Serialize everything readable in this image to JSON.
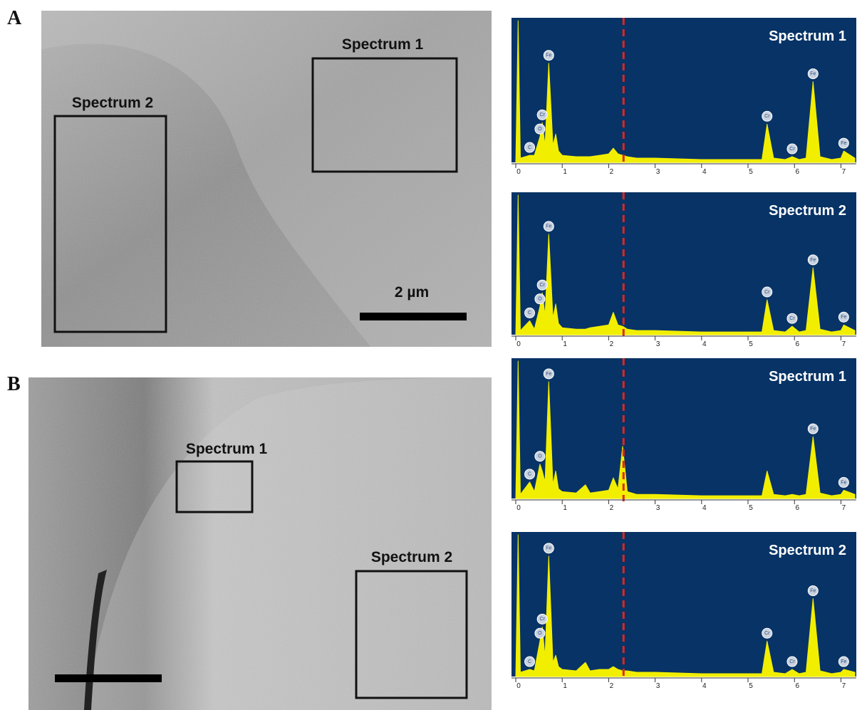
{
  "figure": {
    "panels": [
      {
        "label": "A",
        "regions": [
          "Spectrum 1",
          "Spectrum 2"
        ],
        "scale_bar": "2 µm"
      },
      {
        "label": "B",
        "regions": [
          "Spectrum 1",
          "Spectrum 2"
        ]
      }
    ]
  },
  "chart_data": [
    {
      "type": "area",
      "title": "Spectrum 1",
      "color": "#f2ee00",
      "xlim": [
        0,
        7.3
      ],
      "xticks": [
        0,
        1,
        2,
        3,
        4,
        5,
        6,
        7
      ],
      "reference_line": 2.32,
      "x": [
        0,
        0.05,
        0.1,
        0.3,
        0.4,
        0.52,
        0.57,
        0.63,
        0.71,
        0.8,
        0.86,
        0.92,
        1.0,
        1.3,
        1.5,
        1.6,
        1.8,
        2.0,
        2.1,
        2.2,
        2.3,
        2.4,
        2.6,
        3.0,
        4.0,
        5.0,
        5.3,
        5.41,
        5.55,
        5.8,
        5.95,
        6.1,
        6.25,
        6.4,
        6.55,
        6.8,
        7.0,
        7.06,
        7.3
      ],
      "values": [
        0,
        100,
        3,
        5,
        5,
        18,
        28,
        12,
        70,
        12,
        20,
        8,
        5,
        4,
        4,
        4,
        5,
        6,
        10,
        6,
        5,
        4,
        3,
        3,
        2,
        2,
        2,
        27,
        3,
        2,
        4,
        2,
        3,
        57,
        4,
        2,
        3,
        8,
        3
      ],
      "peaks": [
        {
          "text": "C",
          "x": 0.3
        },
        {
          "text": "O",
          "x": 0.52
        },
        {
          "text": "Cr",
          "x": 0.57
        },
        {
          "text": "Fe",
          "x": 0.71
        },
        {
          "text": "Cr",
          "x": 5.41
        },
        {
          "text": "Cr",
          "x": 5.95
        },
        {
          "text": "Fe",
          "x": 6.4
        },
        {
          "text": "Fe",
          "x": 7.06
        }
      ]
    },
    {
      "type": "area",
      "title": "Spectrum 2",
      "color": "#f2ee00",
      "xlim": [
        0,
        7.3
      ],
      "xticks": [
        0,
        1,
        2,
        3,
        4,
        5,
        6,
        7
      ],
      "reference_line": 2.32,
      "x": [
        0,
        0.05,
        0.1,
        0.3,
        0.4,
        0.52,
        0.57,
        0.63,
        0.71,
        0.8,
        0.86,
        0.92,
        1.0,
        1.3,
        1.5,
        1.6,
        1.8,
        2.0,
        2.1,
        2.2,
        2.3,
        2.4,
        2.6,
        3.0,
        4.0,
        5.0,
        5.3,
        5.41,
        5.55,
        5.8,
        5.95,
        6.1,
        6.25,
        6.4,
        6.55,
        6.8,
        7.0,
        7.06,
        7.3
      ],
      "values": [
        0,
        100,
        3,
        10,
        4,
        20,
        30,
        14,
        72,
        12,
        22,
        8,
        5,
        4,
        4,
        5,
        6,
        7,
        16,
        7,
        6,
        4,
        3,
        3,
        2,
        2,
        2,
        25,
        3,
        2,
        6,
        2,
        3,
        48,
        4,
        2,
        3,
        7,
        3
      ],
      "peaks": [
        {
          "text": "C",
          "x": 0.3
        },
        {
          "text": "O",
          "x": 0.52
        },
        {
          "text": "Cr",
          "x": 0.57
        },
        {
          "text": "Fe",
          "x": 0.71
        },
        {
          "text": "Cr",
          "x": 5.41
        },
        {
          "text": "Cr",
          "x": 5.95
        },
        {
          "text": "Fe",
          "x": 6.4
        },
        {
          "text": "Fe",
          "x": 7.06
        }
      ]
    },
    {
      "type": "area",
      "title": "Spectrum 1",
      "color": "#f2ee00",
      "xlim": [
        0,
        7.3
      ],
      "xticks": [
        0,
        1,
        2,
        3,
        4,
        5,
        6,
        7
      ],
      "reference_line": 2.32,
      "x": [
        0,
        0.05,
        0.1,
        0.3,
        0.4,
        0.52,
        0.57,
        0.63,
        0.71,
        0.8,
        0.86,
        0.92,
        1.0,
        1.3,
        1.5,
        1.6,
        1.8,
        2.0,
        2.1,
        2.2,
        2.3,
        2.4,
        2.6,
        3.0,
        4.0,
        5.0,
        5.3,
        5.41,
        5.55,
        5.8,
        5.95,
        6.1,
        6.25,
        6.4,
        6.55,
        6.8,
        7.0,
        7.06,
        7.3
      ],
      "values": [
        0,
        100,
        3,
        12,
        5,
        25,
        20,
        12,
        85,
        10,
        20,
        7,
        5,
        4,
        10,
        4,
        5,
        6,
        15,
        7,
        38,
        5,
        3,
        3,
        2,
        2,
        2,
        20,
        3,
        2,
        3,
        2,
        3,
        45,
        4,
        2,
        3,
        6,
        3
      ],
      "peaks": [
        {
          "text": "C",
          "x": 0.3
        },
        {
          "text": "O",
          "x": 0.52
        },
        {
          "text": "Fe",
          "x": 0.71
        },
        {
          "text": "Fe",
          "x": 6.4
        },
        {
          "text": "Fe",
          "x": 7.06
        }
      ]
    },
    {
      "type": "area",
      "title": "Spectrum 2",
      "color": "#f2ee00",
      "xlim": [
        0,
        7.3
      ],
      "xticks": [
        0,
        1,
        2,
        3,
        4,
        5,
        6,
        7
      ],
      "reference_line": 2.32,
      "x": [
        0,
        0.05,
        0.1,
        0.3,
        0.4,
        0.52,
        0.57,
        0.63,
        0.71,
        0.8,
        0.86,
        0.92,
        1.0,
        1.3,
        1.5,
        1.6,
        1.8,
        2.0,
        2.1,
        2.2,
        2.3,
        2.4,
        2.6,
        3.0,
        4.0,
        5.0,
        5.3,
        5.41,
        5.55,
        5.8,
        5.95,
        6.1,
        6.25,
        6.4,
        6.55,
        6.8,
        7.0,
        7.06,
        7.3
      ],
      "values": [
        0,
        100,
        3,
        5,
        4,
        25,
        35,
        14,
        85,
        10,
        15,
        7,
        5,
        4,
        10,
        4,
        5,
        5,
        7,
        5,
        4,
        4,
        3,
        3,
        2,
        2,
        2,
        25,
        3,
        2,
        5,
        2,
        3,
        55,
        4,
        2,
        3,
        5,
        3
      ],
      "peaks": [
        {
          "text": "C",
          "x": 0.3
        },
        {
          "text": "O",
          "x": 0.52
        },
        {
          "text": "Cr",
          "x": 0.57
        },
        {
          "text": "Fe",
          "x": 0.71
        },
        {
          "text": "Cr",
          "x": 5.41
        },
        {
          "text": "Cr",
          "x": 5.95
        },
        {
          "text": "Fe",
          "x": 6.4
        },
        {
          "text": "Fe",
          "x": 7.06
        }
      ]
    }
  ]
}
